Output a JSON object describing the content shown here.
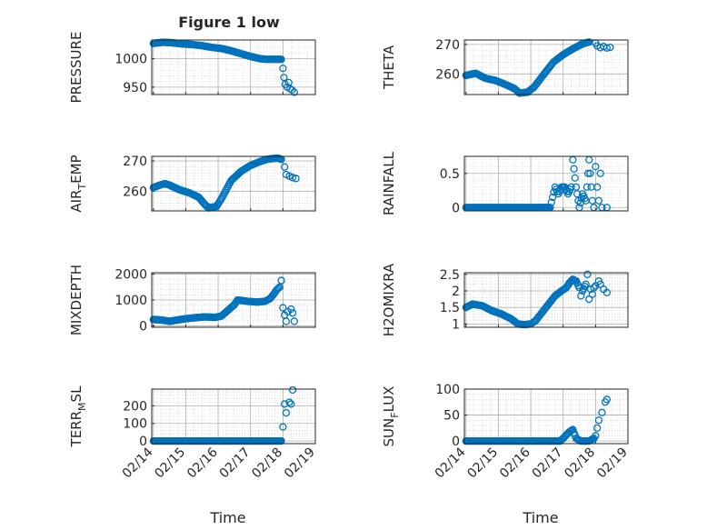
{
  "figure": {
    "title": "Figure 1 low",
    "xlabel": "Time"
  },
  "colors": {
    "marker": "#0072BD",
    "axis": "#262626",
    "grid": "#c8c8c8"
  },
  "chart_data": [
    {
      "type": "scatter",
      "ylabel": "PRESSURE",
      "ylabel_parts": {
        "main": "PRESSURE",
        "sub": "",
        "rest": ""
      },
      "ylim": [
        937,
        1033
      ],
      "yticks": [
        950,
        1000
      ],
      "x_range_days": [
        "02/14",
        "02/19"
      ],
      "x_ticklabels": null,
      "points": [
        [
          0.0,
          1027
        ],
        [
          0.3,
          1029
        ],
        [
          0.6,
          1028
        ],
        [
          0.9,
          1026
        ],
        [
          1.2,
          1025
        ],
        [
          1.5,
          1023
        ],
        [
          1.8,
          1020
        ],
        [
          2.1,
          1018
        ],
        [
          2.4,
          1014
        ],
        [
          2.7,
          1009
        ],
        [
          3.0,
          1004
        ],
        [
          3.3,
          1000
        ],
        [
          3.5,
          999
        ],
        [
          3.7,
          999
        ],
        [
          3.95,
          999
        ],
        [
          4.0,
          983
        ],
        [
          4.03,
          967
        ],
        [
          4.07,
          955
        ],
        [
          4.13,
          950
        ],
        [
          4.18,
          958
        ],
        [
          4.22,
          947
        ],
        [
          4.28,
          945
        ],
        [
          4.35,
          941
        ]
      ]
    },
    {
      "type": "scatter",
      "ylabel": "THETA",
      "ylabel_parts": {
        "main": "THETA",
        "sub": "",
        "rest": ""
      },
      "ylim": [
        253,
        271.5
      ],
      "yticks": [
        260,
        270
      ],
      "x_range_days": [
        "02/14",
        "02/19"
      ],
      "x_ticklabels": null,
      "points": [
        [
          0.0,
          259.5
        ],
        [
          0.3,
          260.2
        ],
        [
          0.6,
          258.5
        ],
        [
          0.9,
          257.8
        ],
        [
          1.2,
          256.5
        ],
        [
          1.5,
          255.0
        ],
        [
          1.65,
          253.5
        ],
        [
          1.9,
          253.8
        ],
        [
          2.1,
          255.5
        ],
        [
          2.4,
          259.8
        ],
        [
          2.7,
          264.0
        ],
        [
          3.0,
          266.5
        ],
        [
          3.3,
          268.5
        ],
        [
          3.6,
          270.2
        ],
        [
          3.8,
          270.8
        ],
        [
          4.0,
          270.5
        ],
        [
          4.05,
          269.5
        ],
        [
          4.15,
          268.9
        ],
        [
          4.25,
          269.3
        ],
        [
          4.35,
          268.8
        ],
        [
          4.45,
          269.0
        ]
      ]
    },
    {
      "type": "scatter",
      "ylabel": "AIR_TEMP",
      "ylabel_parts": {
        "main": "AIR",
        "sub": "T",
        "rest": "EMP"
      },
      "ylim": [
        253.5,
        271.5
      ],
      "yticks": [
        260,
        270
      ],
      "x_range_days": [
        "02/14",
        "02/19"
      ],
      "x_ticklabels": null,
      "points": [
        [
          0.0,
          261.2
        ],
        [
          0.2,
          262.0
        ],
        [
          0.35,
          262.5
        ],
        [
          0.5,
          262.0
        ],
        [
          0.8,
          260.5
        ],
        [
          1.1,
          259.5
        ],
        [
          1.4,
          258.0
        ],
        [
          1.6,
          255.5
        ],
        [
          1.7,
          254.5
        ],
        [
          1.95,
          255.0
        ],
        [
          2.1,
          257.5
        ],
        [
          2.4,
          263.5
        ],
        [
          2.7,
          266.5
        ],
        [
          3.0,
          268.5
        ],
        [
          3.3,
          269.8
        ],
        [
          3.5,
          270.5
        ],
        [
          3.7,
          270.8
        ],
        [
          3.85,
          270.9
        ],
        [
          3.95,
          270.5
        ],
        [
          4.05,
          268.0
        ],
        [
          4.1,
          265.5
        ],
        [
          4.2,
          265.0
        ],
        [
          4.3,
          264.5
        ],
        [
          4.4,
          264.2
        ]
      ]
    },
    {
      "type": "scatter",
      "ylabel": "RAINFALL",
      "ylabel_parts": {
        "main": "RAINFALL",
        "sub": "",
        "rest": ""
      },
      "ylim": [
        -0.05,
        0.75
      ],
      "yticks": [
        0,
        0.5
      ],
      "x_range_days": [
        "02/14",
        "02/19"
      ],
      "x_ticklabels": null,
      "points": [
        [
          0.0,
          0
        ],
        [
          0.5,
          0
        ],
        [
          1.0,
          0
        ],
        [
          1.5,
          0
        ],
        [
          2.0,
          0
        ],
        [
          2.5,
          0
        ],
        [
          2.6,
          0
        ],
        [
          2.75,
          0.3
        ],
        [
          2.85,
          0.2
        ],
        [
          2.95,
          0.3
        ],
        [
          3.05,
          0.3
        ],
        [
          3.15,
          0.2
        ],
        [
          3.25,
          0.3
        ],
        [
          3.3,
          0.7
        ],
        [
          3.4,
          0.3
        ],
        [
          3.5,
          0
        ],
        [
          3.6,
          0.2
        ],
        [
          3.7,
          0.1
        ],
        [
          3.8,
          0.7
        ],
        [
          3.9,
          0.1
        ],
        [
          3.95,
          0
        ],
        [
          4.0,
          0.6
        ],
        [
          4.05,
          0.3
        ],
        [
          4.1,
          0.1
        ],
        [
          4.15,
          0.5
        ],
        [
          4.2,
          0
        ],
        [
          4.35,
          0
        ]
      ]
    },
    {
      "type": "scatter",
      "ylabel": "MIXDEPTH",
      "ylabel_parts": {
        "main": "MIXDEPTH",
        "sub": "",
        "rest": ""
      },
      "ylim": [
        -50,
        2050
      ],
      "yticks": [
        0,
        1000,
        2000
      ],
      "x_range_days": [
        "02/14",
        "02/19"
      ],
      "x_ticklabels": null,
      "points": [
        [
          0.0,
          250
        ],
        [
          0.3,
          220
        ],
        [
          0.5,
          180
        ],
        [
          0.8,
          240
        ],
        [
          1.0,
          280
        ],
        [
          1.3,
          320
        ],
        [
          1.6,
          350
        ],
        [
          1.9,
          330
        ],
        [
          2.1,
          380
        ],
        [
          2.3,
          600
        ],
        [
          2.5,
          820
        ],
        [
          2.6,
          1000
        ],
        [
          2.9,
          950
        ],
        [
          3.2,
          920
        ],
        [
          3.45,
          950
        ],
        [
          3.6,
          1050
        ],
        [
          3.7,
          1200
        ],
        [
          3.8,
          1380
        ],
        [
          3.9,
          1500
        ],
        [
          3.95,
          1750
        ],
        [
          4.0,
          700
        ],
        [
          4.05,
          420
        ],
        [
          4.1,
          180
        ],
        [
          4.15,
          550
        ],
        [
          4.25,
          650
        ],
        [
          4.3,
          500
        ],
        [
          4.35,
          180
        ]
      ]
    },
    {
      "type": "scatter",
      "ylabel": "H2OMIXRA",
      "ylabel_parts": {
        "main": "H2OMIXRA",
        "sub": "",
        "rest": ""
      },
      "ylim": [
        0.9,
        2.55
      ],
      "yticks": [
        1,
        1.5,
        2,
        2.5
      ],
      "x_range_days": [
        "02/14",
        "02/19"
      ],
      "x_ticklabels": null,
      "points": [
        [
          0.0,
          1.5
        ],
        [
          0.2,
          1.6
        ],
        [
          0.5,
          1.55
        ],
        [
          0.8,
          1.4
        ],
        [
          1.1,
          1.3
        ],
        [
          1.4,
          1.15
        ],
        [
          1.6,
          1.0
        ],
        [
          1.8,
          0.98
        ],
        [
          2.0,
          1.0
        ],
        [
          2.15,
          1.1
        ],
        [
          2.35,
          1.35
        ],
        [
          2.55,
          1.6
        ],
        [
          2.75,
          1.85
        ],
        [
          2.95,
          2.0
        ],
        [
          3.1,
          2.1
        ],
        [
          3.2,
          2.25
        ],
        [
          3.3,
          2.35
        ],
        [
          3.4,
          2.3
        ],
        [
          3.5,
          2.1
        ],
        [
          3.55,
          1.85
        ],
        [
          3.6,
          2.0
        ],
        [
          3.7,
          2.2
        ],
        [
          3.75,
          2.5
        ],
        [
          3.8,
          1.75
        ],
        [
          3.85,
          2.05
        ],
        [
          3.9,
          1.9
        ],
        [
          3.95,
          2.1
        ],
        [
          4.0,
          2.15
        ],
        [
          4.1,
          2.3
        ],
        [
          4.15,
          2.2
        ],
        [
          4.25,
          2.05
        ],
        [
          4.35,
          1.95
        ]
      ]
    },
    {
      "type": "scatter",
      "ylabel": "TERR_MSL",
      "ylabel_parts": {
        "main": "TERR",
        "sub": "M",
        "rest": "SL"
      },
      "ylim": [
        -15,
        295
      ],
      "yticks": [
        0,
        100,
        200
      ],
      "x_range_days": [
        "02/14",
        "02/19"
      ],
      "x_ticklabels": [
        "02/14",
        "02/15",
        "02/16",
        "02/17",
        "02/18",
        "02/19"
      ],
      "points": [
        [
          0.0,
          0
        ],
        [
          0.5,
          0
        ],
        [
          1.0,
          0
        ],
        [
          1.5,
          0
        ],
        [
          2.0,
          0
        ],
        [
          2.5,
          0
        ],
        [
          3.0,
          0
        ],
        [
          3.5,
          0
        ],
        [
          3.8,
          0
        ],
        [
          3.95,
          0
        ],
        [
          4.0,
          80
        ],
        [
          4.05,
          210
        ],
        [
          4.1,
          160
        ],
        [
          4.2,
          220
        ],
        [
          4.25,
          210
        ],
        [
          4.3,
          290
        ]
      ]
    },
    {
      "type": "scatter",
      "ylabel": "SUN_FLUX",
      "ylabel_parts": {
        "main": "SUN",
        "sub": "F",
        "rest": "LUX"
      },
      "ylim": [
        -5,
        100
      ],
      "yticks": [
        0,
        50,
        100
      ],
      "x_range_days": [
        "02/14",
        "02/19"
      ],
      "x_ticklabels": [
        "02/14",
        "02/15",
        "02/16",
        "02/17",
        "02/18",
        "02/19"
      ],
      "points": [
        [
          0.0,
          0
        ],
        [
          0.5,
          0
        ],
        [
          1.0,
          0
        ],
        [
          1.5,
          0
        ],
        [
          2.0,
          0
        ],
        [
          2.5,
          0
        ],
        [
          2.9,
          0
        ],
        [
          3.0,
          5
        ],
        [
          3.1,
          12
        ],
        [
          3.2,
          18
        ],
        [
          3.3,
          22
        ],
        [
          3.4,
          5
        ],
        [
          3.55,
          0
        ],
        [
          3.8,
          0
        ],
        [
          3.95,
          5
        ],
        [
          4.0,
          10
        ],
        [
          4.05,
          25
        ],
        [
          4.1,
          40
        ],
        [
          4.2,
          55
        ],
        [
          4.3,
          75
        ],
        [
          4.35,
          80
        ]
      ]
    }
  ]
}
